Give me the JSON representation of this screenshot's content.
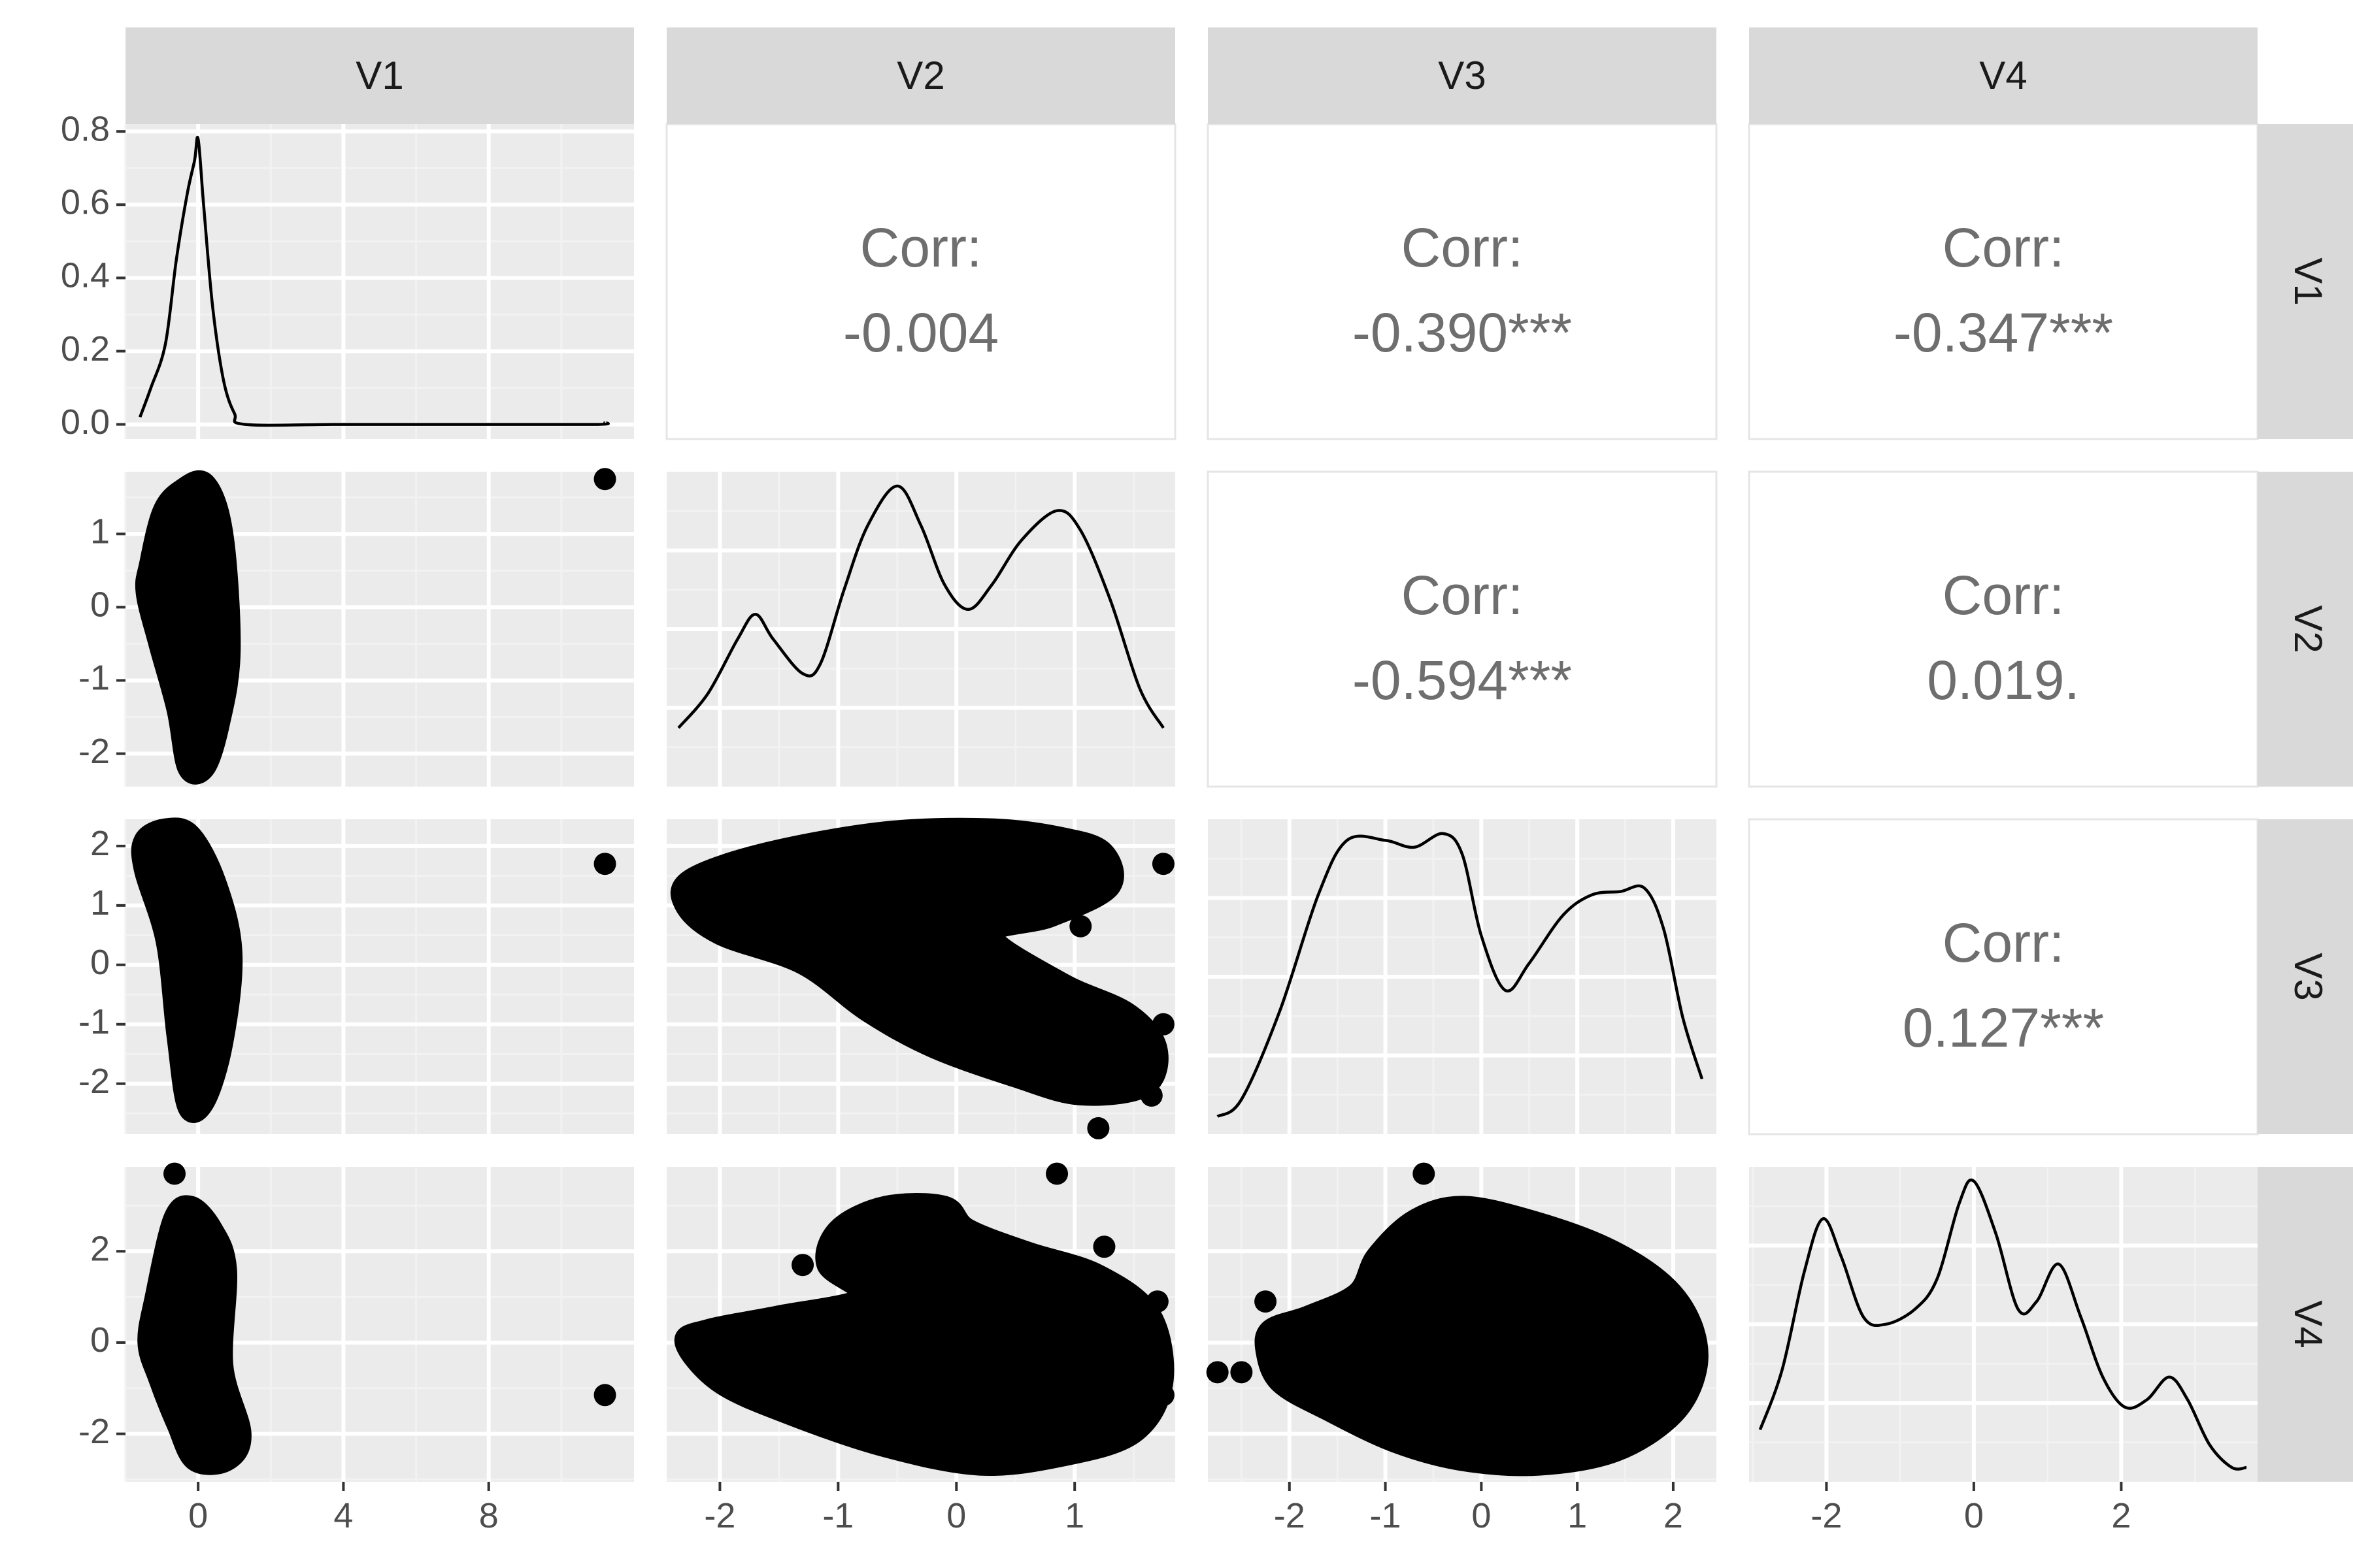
{
  "chart_data": {
    "type": "scatter-matrix",
    "variables": [
      "V1",
      "V2",
      "V3",
      "V4"
    ],
    "correlations": [
      {
        "row": "V1",
        "col": "V2",
        "label": "Corr:",
        "value": "-0.004"
      },
      {
        "row": "V1",
        "col": "V3",
        "label": "Corr:",
        "value": "-0.390***"
      },
      {
        "row": "V1",
        "col": "V4",
        "label": "Corr:",
        "value": "-0.347***"
      },
      {
        "row": "V2",
        "col": "V3",
        "label": "Corr:",
        "value": "-0.594***"
      },
      {
        "row": "V2",
        "col": "V4",
        "label": "Corr:",
        "value": "0.019."
      },
      {
        "row": "V3",
        "col": "V4",
        "label": "Corr:",
        "value": "0.127***"
      }
    ],
    "axes": {
      "V1": {
        "range": [
          -2,
          12
        ],
        "ticks": [
          0,
          4,
          8
        ],
        "tick_labels": [
          "0",
          "4",
          "8"
        ]
      },
      "V2": {
        "range": [
          -2.45,
          1.85
        ],
        "ticks": [
          -2,
          -1,
          0,
          1
        ],
        "tick_labels": [
          "-2",
          "-1",
          "0",
          "1"
        ]
      },
      "V3": {
        "range": [
          -2.85,
          2.45
        ],
        "ticks": [
          -2,
          -1,
          0,
          1,
          2
        ],
        "tick_labels": [
          "-2",
          "-1",
          "0",
          "1",
          "2"
        ]
      },
      "V4": {
        "range": [
          -3.05,
          3.85
        ],
        "ticks": [
          -2,
          0,
          2
        ],
        "tick_labels": [
          "-2",
          "0",
          "2"
        ]
      }
    },
    "density_axis": {
      "range": [
        -0.04,
        0.82
      ],
      "ticks": [
        0.0,
        0.2,
        0.4,
        0.6,
        0.8
      ],
      "tick_labels": [
        "0.0",
        "0.2",
        "0.4",
        "0.6",
        "0.8"
      ]
    },
    "densities": {
      "V1": [
        [
          -1.6,
          0.02
        ],
        [
          -1.3,
          0.1
        ],
        [
          -0.9,
          0.22
        ],
        [
          -0.6,
          0.45
        ],
        [
          -0.3,
          0.63
        ],
        [
          -0.1,
          0.72
        ],
        [
          0.0,
          0.78
        ],
        [
          0.15,
          0.6
        ],
        [
          0.4,
          0.32
        ],
        [
          0.7,
          0.12
        ],
        [
          1.0,
          0.03
        ],
        [
          1.3,
          0.0
        ],
        [
          4,
          0.0
        ],
        [
          8,
          0.0
        ],
        [
          11,
          0.0
        ],
        [
          11.2,
          0.005
        ]
      ],
      "V2": [
        [
          -2.35,
          0.09
        ],
        [
          -2.1,
          0.16
        ],
        [
          -1.85,
          0.27
        ],
        [
          -1.7,
          0.32
        ],
        [
          -1.55,
          0.27
        ],
        [
          -1.3,
          0.2
        ],
        [
          -1.15,
          0.22
        ],
        [
          -0.95,
          0.37
        ],
        [
          -0.75,
          0.5
        ],
        [
          -0.5,
          0.58
        ],
        [
          -0.3,
          0.5
        ],
        [
          -0.1,
          0.38
        ],
        [
          0.1,
          0.33
        ],
        [
          0.3,
          0.38
        ],
        [
          0.55,
          0.47
        ],
        [
          0.85,
          0.53
        ],
        [
          1.05,
          0.49
        ],
        [
          1.3,
          0.35
        ],
        [
          1.55,
          0.17
        ],
        [
          1.75,
          0.09
        ]
      ],
      "V3": [
        [
          -2.75,
          0.005
        ],
        [
          -2.5,
          0.03
        ],
        [
          -2.1,
          0.16
        ],
        [
          -1.7,
          0.33
        ],
        [
          -1.4,
          0.41
        ],
        [
          -1.0,
          0.41
        ],
        [
          -0.7,
          0.4
        ],
        [
          -0.4,
          0.42
        ],
        [
          -0.2,
          0.39
        ],
        [
          0.0,
          0.27
        ],
        [
          0.25,
          0.19
        ],
        [
          0.5,
          0.23
        ],
        [
          0.85,
          0.3
        ],
        [
          1.15,
          0.33
        ],
        [
          1.45,
          0.335
        ],
        [
          1.7,
          0.34
        ],
        [
          1.9,
          0.28
        ],
        [
          2.1,
          0.15
        ],
        [
          2.3,
          0.06
        ]
      ],
      "V4": [
        [
          -2.9,
          0.05
        ],
        [
          -2.6,
          0.13
        ],
        [
          -2.3,
          0.26
        ],
        [
          -2.05,
          0.33
        ],
        [
          -1.8,
          0.28
        ],
        [
          -1.5,
          0.2
        ],
        [
          -1.2,
          0.19
        ],
        [
          -0.8,
          0.21
        ],
        [
          -0.5,
          0.25
        ],
        [
          -0.2,
          0.35
        ],
        [
          0.0,
          0.38
        ],
        [
          0.3,
          0.31
        ],
        [
          0.6,
          0.21
        ],
        [
          0.85,
          0.22
        ],
        [
          1.15,
          0.27
        ],
        [
          1.45,
          0.2
        ],
        [
          1.75,
          0.12
        ],
        [
          2.05,
          0.08
        ],
        [
          2.35,
          0.09
        ],
        [
          2.65,
          0.12
        ],
        [
          2.9,
          0.09
        ],
        [
          3.2,
          0.03
        ],
        [
          3.5,
          0.0
        ],
        [
          3.7,
          0.0
        ]
      ]
    },
    "scatter_clouds": {
      "V2_vs_V1": [
        [
          -1.35,
          0.6
        ],
        [
          -1.0,
          1.3
        ],
        [
          -0.5,
          1.6
        ],
        [
          0.2,
          1.7
        ],
        [
          0.7,
          1.0
        ],
        [
          0.9,
          -0.6
        ],
        [
          0.6,
          -1.6
        ],
        [
          0.2,
          -2.2
        ],
        [
          -0.3,
          -2.2
        ],
        [
          -0.6,
          -1.4
        ],
        [
          -1.1,
          -0.5
        ],
        [
          -1.45,
          0.2
        ]
      ],
      "V3_vs_V1": [
        [
          -1.5,
          2.1
        ],
        [
          -0.9,
          2.3
        ],
        [
          -0.2,
          2.2
        ],
        [
          0.5,
          1.4
        ],
        [
          0.95,
          0.2
        ],
        [
          0.7,
          -1.3
        ],
        [
          0.2,
          -2.3
        ],
        [
          -0.3,
          -2.4
        ],
        [
          -0.6,
          -1.2
        ],
        [
          -0.9,
          0.4
        ],
        [
          -1.5,
          1.6
        ]
      ],
      "V4_vs_V1": [
        [
          -1.2,
          1.0
        ],
        [
          -0.7,
          2.7
        ],
        [
          -0.2,
          3.0
        ],
        [
          0.4,
          2.5
        ],
        [
          0.8,
          1.6
        ],
        [
          0.7,
          -0.5
        ],
        [
          1.2,
          -2.0
        ],
        [
          0.8,
          -2.6
        ],
        [
          -0.1,
          -2.6
        ],
        [
          -0.6,
          -1.8
        ],
        [
          -1.1,
          -0.8
        ],
        [
          -1.4,
          0.0
        ]
      ],
      "V3_vs_V2": [
        [
          -2.3,
          1.0
        ],
        [
          -2.25,
          1.45
        ],
        [
          -1.6,
          1.9
        ],
        [
          -0.6,
          2.25
        ],
        [
          0.3,
          2.3
        ],
        [
          0.9,
          2.15
        ],
        [
          1.25,
          1.9
        ],
        [
          1.3,
          1.3
        ],
        [
          0.8,
          0.8
        ],
        [
          0.3,
          0.5
        ],
        [
          0.9,
          -0.3
        ],
        [
          1.45,
          -0.8
        ],
        [
          1.7,
          -1.4
        ],
        [
          1.6,
          -2.05
        ],
        [
          1.05,
          -2.2
        ],
        [
          0.5,
          -1.9
        ],
        [
          -0.2,
          -1.4
        ],
        [
          -0.75,
          -0.8
        ],
        [
          -1.3,
          0.0
        ],
        [
          -2.0,
          0.5
        ]
      ],
      "V4_vs_V2": [
        [
          -2.3,
          0.0
        ],
        [
          -2.0,
          -0.9
        ],
        [
          -1.4,
          -1.6
        ],
        [
          -0.6,
          -2.3
        ],
        [
          0.2,
          -2.7
        ],
        [
          0.9,
          -2.5
        ],
        [
          1.5,
          -2.0
        ],
        [
          1.75,
          -0.9
        ],
        [
          1.65,
          0.6
        ],
        [
          1.2,
          1.5
        ],
        [
          0.6,
          2.0
        ],
        [
          0.1,
          2.5
        ],
        [
          -0.1,
          3.0
        ],
        [
          -0.6,
          3.0
        ],
        [
          -1.0,
          2.5
        ],
        [
          -1.1,
          1.7
        ],
        [
          -0.8,
          1.0
        ],
        [
          -1.5,
          0.6
        ],
        [
          -2.1,
          0.3
        ]
      ],
      "V4_vs_V3": [
        [
          -2.25,
          -0.2
        ],
        [
          -2.1,
          -0.9
        ],
        [
          -1.6,
          -1.5
        ],
        [
          -0.9,
          -2.2
        ],
        [
          -0.2,
          -2.6
        ],
        [
          0.6,
          -2.7
        ],
        [
          1.4,
          -2.4
        ],
        [
          2.0,
          -1.6
        ],
        [
          2.25,
          -0.6
        ],
        [
          2.2,
          0.4
        ],
        [
          1.9,
          1.3
        ],
        [
          1.3,
          2.1
        ],
        [
          0.5,
          2.7
        ],
        [
          -0.2,
          3.0
        ],
        [
          -0.7,
          2.7
        ],
        [
          -1.1,
          1.9
        ],
        [
          -1.3,
          1.1
        ],
        [
          -1.8,
          0.6
        ],
        [
          -2.2,
          0.3
        ]
      ]
    },
    "outlier_points": {
      "V2_vs_V1": [
        [
          11.2,
          1.75
        ]
      ],
      "V3_vs_V1": [
        [
          11.2,
          1.7
        ]
      ],
      "V4_vs_V1": [
        [
          11.2,
          -1.15
        ],
        [
          -0.65,
          3.7
        ]
      ],
      "V3_vs_V2": [
        [
          1.75,
          1.7
        ],
        [
          1.2,
          -2.75
        ],
        [
          1.05,
          0.65
        ],
        [
          -1.15,
          0.0
        ],
        [
          -0.3,
          0.7
        ],
        [
          1.75,
          -1.0
        ],
        [
          1.65,
          -2.2
        ]
      ],
      "V4_vs_V2": [
        [
          0.85,
          3.7
        ],
        [
          1.75,
          -1.15
        ],
        [
          -0.4,
          -0.7
        ],
        [
          1.25,
          2.1
        ],
        [
          1.7,
          0.9
        ],
        [
          -1.3,
          1.7
        ]
      ],
      "V4_vs_V3": [
        [
          -0.6,
          3.7
        ],
        [
          -2.75,
          -0.65
        ],
        [
          -2.25,
          0.9
        ],
        [
          -2.5,
          -0.65
        ]
      ]
    },
    "grid": true,
    "legend": "none"
  }
}
